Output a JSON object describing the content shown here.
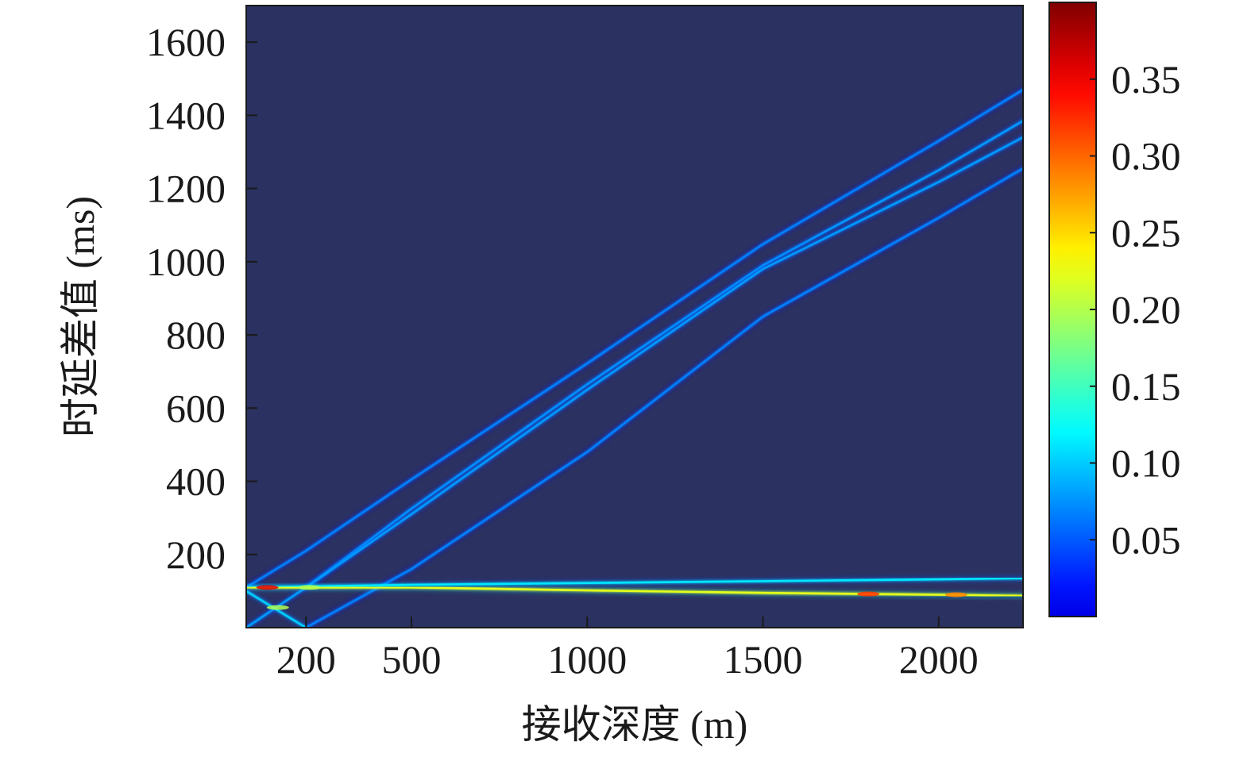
{
  "chart_data": {
    "type": "heatmap",
    "title": "",
    "xlabel": "接收深度 (m)",
    "ylabel": "时延差值 (ms)",
    "xlim": [
      30,
      2240
    ],
    "ylim": [
      0,
      1700
    ],
    "xticks": [
      200,
      500,
      1000,
      1500,
      2000
    ],
    "yticks": [
      200,
      400,
      600,
      800,
      1000,
      1200,
      1400,
      1600
    ],
    "xtick_labels": [
      "200",
      "500",
      "1000",
      "1500",
      "2000"
    ],
    "ytick_labels": [
      "200",
      "400",
      "600",
      "800",
      "1000",
      "1200",
      "1400",
      "1600"
    ],
    "colormap": "jet",
    "background_color": "#2b3160",
    "colorbar": {
      "range": [
        0,
        0.4
      ],
      "ticks": [
        0.05,
        0.1,
        0.15,
        0.2,
        0.25,
        0.3,
        0.35
      ],
      "tick_labels": [
        "0.05",
        "0.10",
        "0.15",
        "0.20",
        "0.25",
        "0.30",
        "0.35"
      ]
    },
    "series": [
      {
        "points": [
          [
            30,
            110
          ],
          [
            200,
            210
          ],
          [
            500,
            405
          ],
          [
            1000,
            722
          ],
          [
            1500,
            1048
          ],
          [
            2000,
            1330
          ],
          [
            2240,
            1470
          ]
        ],
        "intensity": 0.1
      },
      {
        "points": [
          [
            200,
            110
          ],
          [
            500,
            325
          ],
          [
            1000,
            665
          ],
          [
            1500,
            990
          ],
          [
            2000,
            1250
          ],
          [
            2240,
            1385
          ]
        ],
        "intensity": 0.11
      },
      {
        "points": [
          [
            30,
            0
          ],
          [
            200,
            110
          ],
          [
            500,
            310
          ],
          [
            1000,
            650
          ],
          [
            1500,
            980
          ],
          [
            2000,
            1218
          ],
          [
            2240,
            1340
          ]
        ],
        "intensity": 0.11
      },
      {
        "points": [
          [
            200,
            0
          ],
          [
            500,
            160
          ],
          [
            1000,
            480
          ],
          [
            1500,
            850
          ],
          [
            2000,
            1120
          ],
          [
            2240,
            1255
          ]
        ],
        "intensity": 0.1
      },
      {
        "points": [
          [
            30,
            110
          ],
          [
            500,
            117
          ],
          [
            1000,
            122
          ],
          [
            1500,
            127
          ],
          [
            2000,
            132
          ],
          [
            2240,
            135
          ]
        ],
        "intensity": 0.14
      },
      {
        "points": [
          [
            30,
            110
          ],
          [
            500,
            110
          ],
          [
            1000,
            102
          ],
          [
            1500,
            95
          ],
          [
            2000,
            90
          ],
          [
            2240,
            87
          ]
        ],
        "intensity": 0.24
      },
      {
        "points": [
          [
            30,
            100
          ],
          [
            200,
            0
          ]
        ],
        "intensity": 0.13
      }
    ],
    "hotspots": [
      {
        "x": 90,
        "y": 110,
        "intensity": 0.36
      },
      {
        "x": 210,
        "y": 110,
        "intensity": 0.22
      },
      {
        "x": 120,
        "y": 55,
        "intensity": 0.22
      },
      {
        "x": 1800,
        "y": 92,
        "intensity": 0.33
      },
      {
        "x": 2050,
        "y": 90,
        "intensity": 0.3
      }
    ]
  }
}
